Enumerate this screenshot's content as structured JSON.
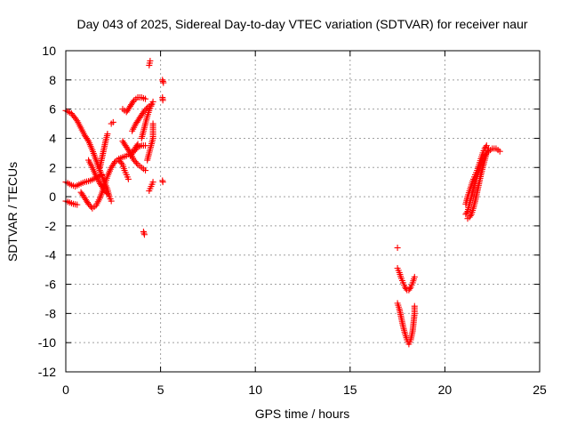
{
  "chart_data": {
    "type": "scatter",
    "title": "Day 043 of 2025, Sidereal Day-to-day VTEC variation (SDTVAR) for receiver naur",
    "xlabel": "GPS time / hours",
    "ylabel": "SDTVAR / TECUs",
    "xlim": [
      0,
      25
    ],
    "ylim": [
      -12,
      10
    ],
    "x_ticks": [
      0,
      5,
      10,
      15,
      20,
      25
    ],
    "x_tick_labels": [
      "0",
      "5",
      "10",
      "15",
      "20",
      "25"
    ],
    "y_ticks": [
      -12,
      -10,
      -8,
      -6,
      -4,
      -2,
      0,
      2,
      4,
      6,
      8,
      10
    ],
    "y_tick_labels": [
      "-12",
      "-10",
      "-8",
      "-6",
      "-4",
      "-2",
      "0",
      "2",
      "4",
      "6",
      "8",
      "10"
    ],
    "grid": true,
    "marker": "plus",
    "marker_color": "#ff0000",
    "segments": [
      {
        "points": [
          [
            0.0,
            5.9
          ],
          [
            0.3,
            5.7
          ],
          [
            0.6,
            5.2
          ],
          [
            0.8,
            4.7
          ],
          [
            1.0,
            4.2
          ],
          [
            1.2,
            3.8
          ],
          [
            1.4,
            3.2
          ],
          [
            1.6,
            2.5
          ],
          [
            1.8,
            1.8
          ],
          [
            2.0,
            1.1
          ],
          [
            2.2,
            0.5
          ],
          [
            2.3,
            0.0
          ],
          [
            2.4,
            -0.3
          ]
        ]
      },
      {
        "points": [
          [
            0.0,
            -0.3
          ],
          [
            0.2,
            -0.4
          ],
          [
            0.4,
            -0.5
          ],
          [
            0.6,
            -0.55
          ]
        ]
      },
      {
        "points": [
          [
            0.0,
            1.0
          ],
          [
            0.3,
            0.8
          ],
          [
            0.5,
            0.7
          ],
          [
            0.8,
            0.9
          ],
          [
            1.0,
            1.0
          ],
          [
            1.3,
            1.1
          ],
          [
            1.6,
            1.3
          ],
          [
            1.9,
            1.5
          ]
        ]
      },
      {
        "points": [
          [
            0.8,
            0.3
          ],
          [
            1.0,
            -0.1
          ],
          [
            1.2,
            -0.5
          ],
          [
            1.4,
            -0.8
          ],
          [
            1.6,
            -0.6
          ],
          [
            1.8,
            -0.1
          ],
          [
            2.0,
            0.6
          ],
          [
            2.2,
            1.4
          ],
          [
            2.4,
            2.0
          ],
          [
            2.6,
            2.4
          ],
          [
            2.8,
            2.6
          ],
          [
            3.0,
            2.7
          ],
          [
            3.2,
            2.8
          ],
          [
            3.4,
            3.0
          ],
          [
            3.6,
            3.2
          ],
          [
            3.8,
            3.6
          ]
        ]
      },
      {
        "points": [
          [
            1.2,
            2.5
          ],
          [
            1.4,
            2.0
          ],
          [
            1.6,
            1.4
          ],
          [
            1.8,
            0.9
          ],
          [
            2.0,
            0.5
          ],
          [
            2.2,
            0.2
          ]
        ]
      },
      {
        "points": [
          [
            1.8,
            2.0
          ],
          [
            1.9,
            2.6
          ],
          [
            2.0,
            3.2
          ],
          [
            2.1,
            3.8
          ],
          [
            2.2,
            4.3
          ]
        ]
      },
      {
        "points": [
          [
            2.4,
            5.0
          ],
          [
            2.5,
            5.1
          ]
        ]
      },
      {
        "points": [
          [
            2.8,
            2.5
          ],
          [
            3.0,
            2.2
          ],
          [
            3.1,
            1.8
          ],
          [
            3.2,
            1.5
          ],
          [
            3.3,
            1.2
          ]
        ]
      },
      {
        "points": [
          [
            3.0,
            3.8
          ],
          [
            3.2,
            3.4
          ],
          [
            3.4,
            3.0
          ],
          [
            3.6,
            2.5
          ],
          [
            3.8,
            2.2
          ],
          [
            4.0,
            2.0
          ],
          [
            4.2,
            1.8
          ]
        ]
      },
      {
        "points": [
          [
            3.0,
            6.0
          ],
          [
            3.2,
            5.8
          ],
          [
            3.4,
            6.2
          ],
          [
            3.6,
            6.6
          ],
          [
            3.8,
            6.8
          ],
          [
            4.0,
            6.8
          ],
          [
            4.2,
            6.7
          ]
        ]
      },
      {
        "points": [
          [
            3.5,
            4.5
          ],
          [
            3.7,
            5.0
          ],
          [
            3.9,
            5.4
          ],
          [
            4.1,
            5.8
          ],
          [
            4.3,
            6.1
          ],
          [
            4.5,
            6.3
          ]
        ]
      },
      {
        "points": [
          [
            3.4,
            2.8
          ],
          [
            3.6,
            3.1
          ],
          [
            3.8,
            3.4
          ],
          [
            4.0,
            3.5
          ],
          [
            4.2,
            3.5
          ]
        ]
      },
      {
        "points": [
          [
            4.0,
            4.0
          ],
          [
            4.1,
            4.5
          ],
          [
            4.2,
            5.0
          ],
          [
            4.3,
            5.5
          ],
          [
            4.4,
            5.9
          ],
          [
            4.5,
            6.2
          ],
          [
            4.6,
            6.5
          ]
        ]
      },
      {
        "points": [
          [
            4.3,
            2.5
          ],
          [
            4.4,
            3.0
          ],
          [
            4.5,
            3.5
          ],
          [
            4.6,
            4.0
          ],
          [
            4.6,
            4.5
          ],
          [
            4.6,
            5.0
          ]
        ]
      },
      {
        "points": [
          [
            4.1,
            -2.4
          ],
          [
            4.15,
            -2.6
          ]
        ]
      },
      {
        "points": [
          [
            4.4,
            0.4
          ],
          [
            4.5,
            0.7
          ],
          [
            4.6,
            1.0
          ]
        ]
      },
      {
        "points": [
          [
            4.4,
            9.0
          ],
          [
            4.45,
            9.3
          ]
        ]
      },
      {
        "points": [
          [
            5.1,
            8.0
          ],
          [
            5.15,
            7.8
          ]
        ]
      },
      {
        "points": [
          [
            5.1,
            6.8
          ],
          [
            5.12,
            6.6
          ]
        ]
      },
      {
        "points": [
          [
            5.1,
            1.1
          ],
          [
            5.12,
            1.0
          ]
        ]
      },
      {
        "points": [
          [
            17.5,
            -3.5
          ]
        ]
      },
      {
        "points": [
          [
            17.5,
            -4.9
          ],
          [
            17.6,
            -5.2
          ],
          [
            17.7,
            -5.6
          ],
          [
            17.8,
            -5.9
          ],
          [
            17.9,
            -6.2
          ],
          [
            18.0,
            -6.4
          ],
          [
            18.1,
            -6.4
          ],
          [
            18.2,
            -6.2
          ],
          [
            18.3,
            -5.9
          ],
          [
            18.4,
            -5.5
          ]
        ]
      },
      {
        "points": [
          [
            17.5,
            -7.3
          ],
          [
            17.6,
            -7.7
          ],
          [
            17.7,
            -8.3
          ],
          [
            17.8,
            -8.9
          ],
          [
            17.9,
            -9.4
          ],
          [
            18.0,
            -9.8
          ],
          [
            18.1,
            -10.1
          ],
          [
            18.2,
            -9.8
          ],
          [
            18.3,
            -9.2
          ],
          [
            18.35,
            -8.6
          ],
          [
            18.4,
            -8.0
          ],
          [
            18.4,
            -7.5
          ]
        ]
      },
      {
        "points": [
          [
            21.1,
            -0.5
          ],
          [
            21.2,
            0.0
          ],
          [
            21.3,
            0.4
          ],
          [
            21.4,
            0.8
          ],
          [
            21.5,
            1.2
          ],
          [
            21.6,
            1.5
          ],
          [
            21.7,
            1.8
          ],
          [
            21.8,
            2.2
          ],
          [
            21.9,
            2.6
          ],
          [
            22.0,
            3.0
          ],
          [
            22.1,
            3.3
          ],
          [
            22.2,
            3.5
          ]
        ]
      },
      {
        "points": [
          [
            21.2,
            -1.5
          ],
          [
            21.3,
            -1.4
          ],
          [
            21.4,
            -1.2
          ],
          [
            21.5,
            -0.8
          ],
          [
            21.6,
            -0.3
          ],
          [
            21.7,
            0.3
          ],
          [
            21.8,
            0.9
          ],
          [
            21.9,
            1.5
          ],
          [
            22.0,
            2.0
          ],
          [
            22.1,
            2.5
          ],
          [
            22.2,
            3.0
          ],
          [
            22.3,
            3.3
          ]
        ]
      },
      {
        "points": [
          [
            21.1,
            -1.2
          ],
          [
            21.2,
            -1.0
          ],
          [
            21.3,
            -0.5
          ],
          [
            21.4,
            0.0
          ],
          [
            21.5,
            0.5
          ],
          [
            21.6,
            1.0
          ],
          [
            21.7,
            1.4
          ],
          [
            21.8,
            1.8
          ],
          [
            21.9,
            2.2
          ],
          [
            22.0,
            2.5
          ],
          [
            22.1,
            2.8
          ],
          [
            22.2,
            3.0
          ],
          [
            22.3,
            3.1
          ],
          [
            22.5,
            3.3
          ],
          [
            22.7,
            3.3
          ],
          [
            22.9,
            3.1
          ]
        ]
      }
    ]
  }
}
